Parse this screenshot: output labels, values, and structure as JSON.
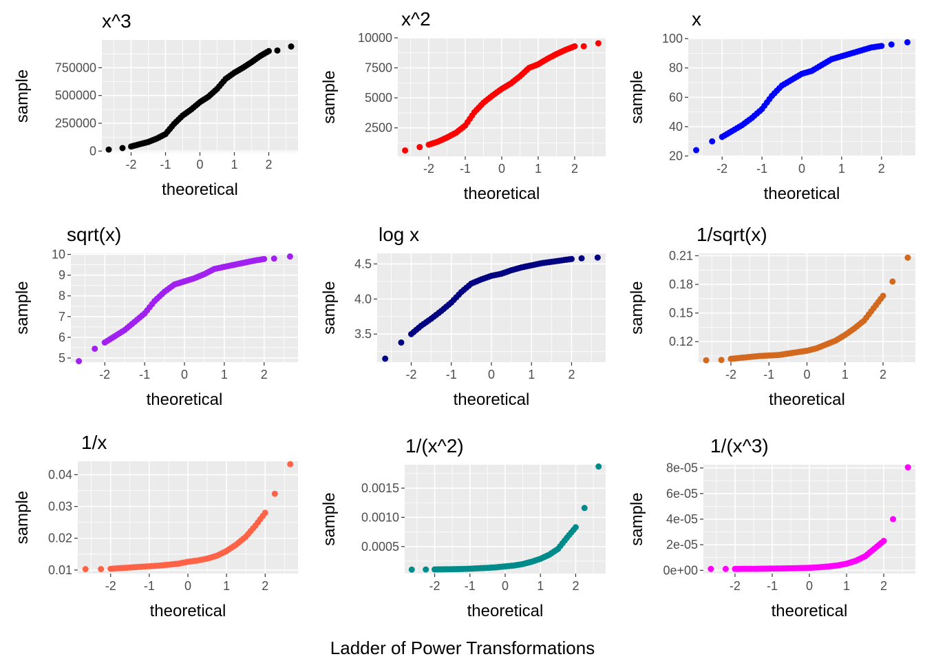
{
  "caption": "Ladder of Power Transformations",
  "chart_data": [
    {
      "type": "scatter",
      "title": "x^3",
      "xlabel": "theoretical",
      "ylabel": "sample",
      "color": "#000000",
      "xlim": [
        -2.85,
        2.85
      ],
      "ylim": [
        -10000,
        1000000
      ],
      "xticks": [
        -2,
        -1,
        0,
        1,
        2
      ],
      "xticklabels": [
        "-2",
        "-1",
        "0",
        "1",
        "2"
      ],
      "yticks": [
        0,
        250000,
        500000,
        750000
      ],
      "yticklabels": [
        "0",
        "250000",
        "500000",
        "750000"
      ],
      "x": [
        -2.65,
        -2.25,
        -2.0,
        -1.75,
        -1.5,
        -1.25,
        -1.0,
        -0.75,
        -0.5,
        -0.25,
        0.0,
        0.25,
        0.5,
        0.75,
        1.0,
        1.25,
        1.5,
        1.75,
        2.0,
        2.25,
        2.65
      ],
      "y": [
        13500,
        27000,
        41000,
        62000,
        82000,
        113000,
        153000,
        245000,
        320000,
        375000,
        440000,
        490000,
        560000,
        650000,
        705000,
        750000,
        800000,
        855000,
        900000,
        905000,
        941000
      ]
    },
    {
      "type": "scatter",
      "title": "x^2",
      "xlabel": "theoretical",
      "ylabel": "sample",
      "color": "#ff0000",
      "xlim": [
        -2.85,
        2.85
      ],
      "ylim": [
        130,
        10000
      ],
      "xticks": [
        -2,
        -1,
        0,
        1,
        2
      ],
      "xticklabels": [
        "-2",
        "-1",
        "0",
        "1",
        "2"
      ],
      "yticks": [
        2500,
        5000,
        7500,
        10000
      ],
      "yticklabels": [
        "2500",
        "5000",
        "7500",
        "10000"
      ],
      "x": [
        -2.65,
        -2.25,
        -2.0,
        -1.75,
        -1.5,
        -1.25,
        -1.0,
        -0.75,
        -0.5,
        -0.25,
        0.0,
        0.25,
        0.5,
        0.75,
        1.0,
        1.25,
        1.5,
        1.75,
        2.0,
        2.25,
        2.65
      ],
      "y": [
        620,
        900,
        1100,
        1350,
        1700,
        2100,
        2700,
        3800,
        4600,
        5200,
        5750,
        6200,
        6800,
        7500,
        7800,
        8250,
        8650,
        9000,
        9300,
        9300,
        9550
      ]
    },
    {
      "type": "scatter",
      "title": "x",
      "xlabel": "theoretical",
      "ylabel": "sample",
      "color": "#0000ff",
      "xlim": [
        -2.85,
        2.85
      ],
      "ylim": [
        19.8,
        100.5
      ],
      "xticks": [
        -2,
        -1,
        0,
        1,
        2
      ],
      "xticklabels": [
        "-2",
        "-1",
        "0",
        "1",
        "2"
      ],
      "yticks": [
        20,
        40,
        60,
        80,
        100
      ],
      "yticklabels": [
        "20",
        "40",
        "60",
        "80",
        "100"
      ],
      "x": [
        -2.65,
        -2.25,
        -2.0,
        -1.75,
        -1.5,
        -1.25,
        -1.0,
        -0.75,
        -0.5,
        -0.25,
        0.0,
        0.25,
        0.5,
        0.75,
        1.0,
        1.25,
        1.5,
        1.75,
        2.0,
        2.25,
        2.65
      ],
      "y": [
        24,
        30,
        33,
        37,
        41,
        46,
        52,
        61,
        68,
        72,
        76,
        78,
        82,
        86,
        88,
        90,
        92,
        94,
        95,
        96,
        97.5
      ]
    },
    {
      "type": "scatter",
      "title": "sqrt(x)",
      "xlabel": "theoretical",
      "ylabel": "sample",
      "color": "#a020f0",
      "xlim": [
        -2.85,
        2.85
      ],
      "ylim": [
        4.8,
        10.05
      ],
      "xticks": [
        -2,
        -1,
        0,
        1,
        2
      ],
      "xticklabels": [
        "-2",
        "-1",
        "0",
        "1",
        "2"
      ],
      "yticks": [
        5,
        6,
        7,
        8,
        9,
        10
      ],
      "yticklabels": [
        "5",
        "6",
        "7",
        "8",
        "9",
        "10"
      ],
      "x": [
        -2.65,
        -2.25,
        -2.0,
        -1.75,
        -1.5,
        -1.25,
        -1.0,
        -0.75,
        -0.5,
        -0.25,
        0.0,
        0.25,
        0.5,
        0.75,
        1.0,
        1.25,
        1.5,
        1.75,
        2.0,
        2.25,
        2.65
      ],
      "y": [
        4.85,
        5.45,
        5.75,
        6.05,
        6.35,
        6.75,
        7.15,
        7.75,
        8.2,
        8.55,
        8.7,
        8.85,
        9.05,
        9.3,
        9.4,
        9.5,
        9.6,
        9.7,
        9.78,
        9.8,
        9.9
      ]
    },
    {
      "type": "scatter",
      "title": "log x",
      "xlabel": "theoretical",
      "ylabel": "sample",
      "color": "#000080",
      "xlim": [
        -2.85,
        2.85
      ],
      "ylim": [
        3.1,
        4.65
      ],
      "xticks": [
        -2,
        -1,
        0,
        1,
        2
      ],
      "xticklabels": [
        "-2",
        "-1",
        "0",
        "1",
        "2"
      ],
      "yticks": [
        3.5,
        4.0,
        4.5
      ],
      "yticklabels": [
        "3.5",
        "4.0",
        "4.5"
      ],
      "x": [
        -2.65,
        -2.25,
        -2.0,
        -1.75,
        -1.5,
        -1.25,
        -1.0,
        -0.75,
        -0.5,
        -0.25,
        0.0,
        0.25,
        0.5,
        0.75,
        1.0,
        1.25,
        1.5,
        1.75,
        2.0,
        2.25,
        2.65
      ],
      "y": [
        3.15,
        3.38,
        3.5,
        3.62,
        3.72,
        3.83,
        3.95,
        4.1,
        4.22,
        4.28,
        4.33,
        4.36,
        4.41,
        4.45,
        4.48,
        4.51,
        4.53,
        4.55,
        4.57,
        4.58,
        4.59
      ]
    },
    {
      "type": "scatter",
      "title": "1/sqrt(x)",
      "xlabel": "theoretical",
      "ylabel": "sample",
      "color": "#d2691e",
      "xlim": [
        -2.85,
        2.85
      ],
      "ylim": [
        0.0985,
        0.2125
      ],
      "xticks": [
        -2,
        -1,
        0,
        1,
        2
      ],
      "xticklabels": [
        "-2",
        "-1",
        "0",
        "1",
        "2"
      ],
      "yticks": [
        0.12,
        0.15,
        0.18,
        0.21
      ],
      "yticklabels": [
        "0.12",
        "0.15",
        "0.18",
        "0.21"
      ],
      "x": [
        -2.65,
        -2.25,
        -2.0,
        -1.75,
        -1.5,
        -1.25,
        -1.0,
        -0.75,
        -0.5,
        -0.25,
        0.0,
        0.25,
        0.5,
        0.75,
        1.0,
        1.25,
        1.5,
        1.75,
        2.0,
        2.25,
        2.65
      ],
      "y": [
        0.1005,
        0.1008,
        0.102,
        0.103,
        0.104,
        0.105,
        0.1055,
        0.106,
        0.1075,
        0.109,
        0.1105,
        0.113,
        0.117,
        0.121,
        0.127,
        0.134,
        0.142,
        0.155,
        0.168,
        0.183,
        0.208
      ]
    },
    {
      "type": "scatter",
      "title": "1/x",
      "xlabel": "theoretical",
      "ylabel": "sample",
      "color": "#ff6347",
      "xlim": [
        -2.85,
        2.85
      ],
      "ylim": [
        0.0089,
        0.0442
      ],
      "xticks": [
        -2,
        -1,
        0,
        1,
        2
      ],
      "xticklabels": [
        "-2",
        "-1",
        "0",
        "1",
        "2"
      ],
      "yticks": [
        0.01,
        0.02,
        0.03,
        0.04
      ],
      "yticklabels": [
        "0.01",
        "0.02",
        "0.03",
        "0.04"
      ],
      "x": [
        -2.65,
        -2.25,
        -2.0,
        -1.75,
        -1.5,
        -1.25,
        -1.0,
        -0.75,
        -0.5,
        -0.25,
        0.0,
        0.25,
        0.5,
        0.75,
        1.0,
        1.25,
        1.5,
        1.75,
        2.0,
        2.25,
        2.65
      ],
      "y": [
        0.0103,
        0.0103,
        0.0104,
        0.0106,
        0.0108,
        0.011,
        0.0112,
        0.0114,
        0.0117,
        0.012,
        0.0126,
        0.013,
        0.0136,
        0.0145,
        0.016,
        0.018,
        0.0205,
        0.024,
        0.028,
        0.034,
        0.0433
      ]
    },
    {
      "type": "scatter",
      "title": "1/(x^2)",
      "xlabel": "theoretical",
      "ylabel": "sample",
      "color": "#008b8b",
      "xlim": [
        -2.85,
        2.85
      ],
      "ylim": [
        3.75e-05,
        0.0019
      ],
      "xticks": [
        -2,
        -1,
        0,
        1,
        2
      ],
      "xticklabels": [
        "-2",
        "-1",
        "0",
        "1",
        "2"
      ],
      "yticks": [
        0.0005,
        0.001,
        0.0015
      ],
      "yticklabels": [
        "0.0005",
        "0.0010",
        "0.0015"
      ],
      "x": [
        -2.65,
        -2.25,
        -2.0,
        -1.75,
        -1.5,
        -1.25,
        -1.0,
        -0.75,
        -0.5,
        -0.25,
        0.0,
        0.25,
        0.5,
        0.75,
        1.0,
        1.25,
        1.5,
        1.75,
        2.0,
        2.25,
        2.65
      ],
      "y": [
        0.000105,
        0.000107,
        0.000108,
        0.00011,
        0.000112,
        0.000115,
        0.00012,
        0.000128,
        0.000135,
        0.000145,
        0.00016,
        0.000175,
        0.0002,
        0.00024,
        0.00029,
        0.00036,
        0.00046,
        0.00065,
        0.00083,
        0.00116,
        0.00187
      ]
    },
    {
      "type": "scatter",
      "title": "1/(x^3)",
      "xlabel": "theoretical",
      "ylabel": "sample",
      "color": "#ff00ff",
      "xlim": [
        -2.85,
        2.85
      ],
      "ylim": [
        -2.5e-06,
        8.25e-05
      ],
      "xticks": [
        -2,
        -1,
        0,
        1,
        2
      ],
      "xticklabels": [
        "-2",
        "-1",
        "0",
        "1",
        "2"
      ],
      "yticks": [
        0,
        2e-05,
        4e-05,
        6e-05,
        8e-05
      ],
      "yticklabels": [
        "0e+00",
        "2e-05",
        "4e-05",
        "6e-05",
        "8e-05"
      ],
      "x": [
        -2.65,
        -2.25,
        -2.0,
        -1.75,
        -1.5,
        -1.25,
        -1.0,
        -0.75,
        -0.5,
        -0.25,
        0.0,
        0.25,
        0.5,
        0.75,
        1.0,
        1.25,
        1.5,
        1.75,
        2.0,
        2.25,
        2.65
      ],
      "y": [
        1.1e-06,
        1.1e-06,
        1.1e-06,
        1.2e-06,
        1.2e-06,
        1.3e-06,
        1.4e-06,
        1.5e-06,
        1.6e-06,
        1.8e-06,
        2e-06,
        2.4e-06,
        3e-06,
        3.8e-06,
        5.2e-06,
        7.5e-06,
        1.1e-05,
        1.7e-05,
        2.3e-05,
        4e-05,
        8.05e-05
      ]
    }
  ]
}
